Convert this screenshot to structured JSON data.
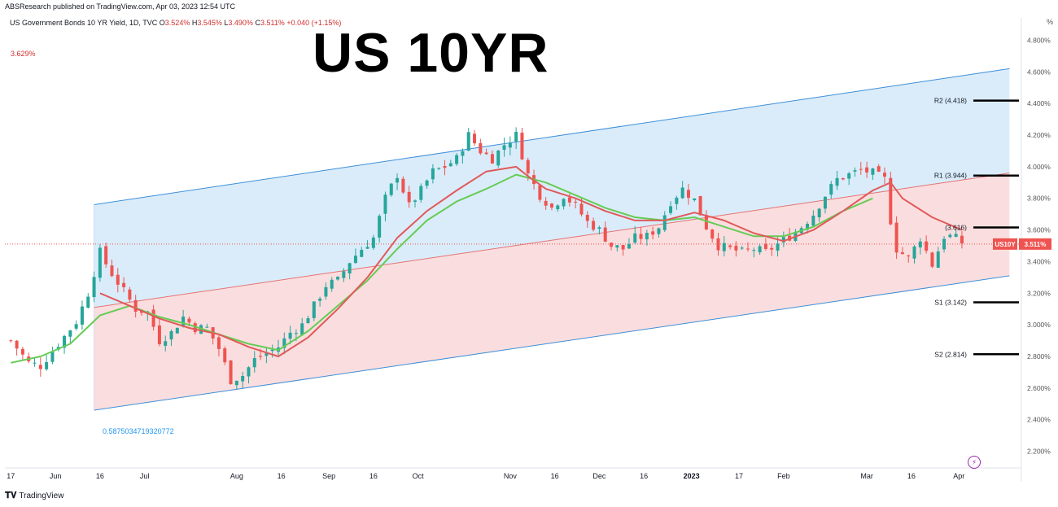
{
  "header": {
    "published": "ABSResearch published on TradingView.com, Apr 03, 2023 12:54 UTC",
    "symbol": "US Government Bonds 10 YR Yield, 1D, TVC",
    "o_label": "O",
    "o_value": "3.524%",
    "h_label": "H",
    "h_value": "3.545%",
    "l_label": "L",
    "l_value": "3.490%",
    "c_label": "C",
    "c_value": "3.511%",
    "change": "+0.040 (+1.15%)",
    "prev_value": "3.629%"
  },
  "title_overlay": "US 10YR",
  "fib_label": "0.5875034719320772",
  "footer": {
    "brand": "TradingView"
  },
  "chart_data": {
    "type": "candlestick",
    "y_unit": "%",
    "ylim": [
      2.1,
      4.9
    ],
    "y_ticks": [
      "2.200%",
      "2.400%",
      "2.600%",
      "2.800%",
      "3.000%",
      "3.200%",
      "3.400%",
      "3.600%",
      "3.800%",
      "4.000%",
      "4.200%",
      "4.400%",
      "4.600%",
      "4.800%"
    ],
    "y_tick_values": [
      2.2,
      2.4,
      2.6,
      2.8,
      3.0,
      3.2,
      3.4,
      3.6,
      3.8,
      4.0,
      4.2,
      4.4,
      4.6,
      4.8
    ],
    "x_ticks": [
      {
        "label": "17",
        "day": 0
      },
      {
        "label": "Jun",
        "day": 15
      },
      {
        "label": "16",
        "day": 30
      },
      {
        "label": "Jul",
        "day": 45
      },
      {
        "label": "Aug",
        "day": 76
      },
      {
        "label": "16",
        "day": 91
      },
      {
        "label": "Sep",
        "day": 107
      },
      {
        "label": "16",
        "day": 122
      },
      {
        "label": "Oct",
        "day": 137
      },
      {
        "label": "Nov",
        "day": 168
      },
      {
        "label": "16",
        "day": 183
      },
      {
        "label": "Dec",
        "day": 198
      },
      {
        "label": "16",
        "day": 213
      },
      {
        "label": "2023",
        "day": 229
      },
      {
        "label": "17",
        "day": 245
      },
      {
        "label": "Feb",
        "day": 260
      },
      {
        "label": "Mar",
        "day": 288
      },
      {
        "label": "16",
        "day": 303
      },
      {
        "label": "Apr",
        "day": 319
      }
    ],
    "x_range_days": [
      -2,
      340
    ],
    "close_series_anchors": [
      [
        0,
        2.9
      ],
      [
        6,
        2.76
      ],
      [
        10,
        2.74
      ],
      [
        16,
        2.88
      ],
      [
        22,
        3.02
      ],
      [
        26,
        3.2
      ],
      [
        30,
        3.46
      ],
      [
        33,
        3.35
      ],
      [
        37,
        3.24
      ],
      [
        42,
        3.1
      ],
      [
        46,
        3.08
      ],
      [
        50,
        2.9
      ],
      [
        54,
        2.95
      ],
      [
        58,
        3.05
      ],
      [
        62,
        2.98
      ],
      [
        66,
        2.98
      ],
      [
        70,
        2.85
      ],
      [
        74,
        2.65
      ],
      [
        78,
        2.68
      ],
      [
        82,
        2.78
      ],
      [
        86,
        2.82
      ],
      [
        90,
        2.86
      ],
      [
        94,
        2.95
      ],
      [
        98,
        3.0
      ],
      [
        102,
        3.12
      ],
      [
        106,
        3.25
      ],
      [
        110,
        3.28
      ],
      [
        114,
        3.4
      ],
      [
        118,
        3.48
      ],
      [
        122,
        3.55
      ],
      [
        126,
        3.8
      ],
      [
        130,
        3.95
      ],
      [
        134,
        3.75
      ],
      [
        138,
        3.85
      ],
      [
        142,
        3.97
      ],
      [
        146,
        4.0
      ],
      [
        150,
        4.05
      ],
      [
        154,
        4.2
      ],
      [
        158,
        4.1
      ],
      [
        162,
        4.05
      ],
      [
        166,
        4.14
      ],
      [
        170,
        4.2
      ],
      [
        174,
        3.95
      ],
      [
        178,
        3.82
      ],
      [
        182,
        3.74
      ],
      [
        186,
        3.82
      ],
      [
        190,
        3.75
      ],
      [
        194,
        3.65
      ],
      [
        198,
        3.6
      ],
      [
        202,
        3.5
      ],
      [
        206,
        3.48
      ],
      [
        210,
        3.55
      ],
      [
        214,
        3.56
      ],
      [
        218,
        3.62
      ],
      [
        222,
        3.78
      ],
      [
        226,
        3.86
      ],
      [
        230,
        3.79
      ],
      [
        234,
        3.62
      ],
      [
        238,
        3.5
      ],
      [
        242,
        3.48
      ],
      [
        246,
        3.46
      ],
      [
        250,
        3.48
      ],
      [
        254,
        3.46
      ],
      [
        258,
        3.51
      ],
      [
        262,
        3.56
      ],
      [
        266,
        3.62
      ],
      [
        270,
        3.7
      ],
      [
        274,
        3.82
      ],
      [
        278,
        3.92
      ],
      [
        282,
        3.95
      ],
      [
        286,
        3.98
      ],
      [
        290,
        3.96
      ],
      [
        294,
        3.92
      ],
      [
        296,
        3.66
      ],
      [
        298,
        3.48
      ],
      [
        302,
        3.42
      ],
      [
        306,
        3.55
      ],
      [
        310,
        3.38
      ],
      [
        314,
        3.56
      ],
      [
        317,
        3.56
      ],
      [
        320,
        3.52
      ]
    ],
    "series": [
      {
        "name": "US10Y",
        "values_ref": "close_series_anchors",
        "color": "#26a69a"
      }
    ],
    "ma_fast_anchors": [
      [
        30,
        3.2
      ],
      [
        40,
        3.12
      ],
      [
        50,
        3.04
      ],
      [
        60,
        2.98
      ],
      [
        70,
        2.94
      ],
      [
        80,
        2.86
      ],
      [
        90,
        2.8
      ],
      [
        100,
        2.92
      ],
      [
        110,
        3.1
      ],
      [
        120,
        3.3
      ],
      [
        130,
        3.55
      ],
      [
        140,
        3.72
      ],
      [
        150,
        3.85
      ],
      [
        160,
        3.97
      ],
      [
        170,
        4.0
      ],
      [
        174,
        3.94
      ],
      [
        180,
        3.86
      ],
      [
        190,
        3.8
      ],
      [
        200,
        3.72
      ],
      [
        210,
        3.66
      ],
      [
        220,
        3.66
      ],
      [
        230,
        3.71
      ],
      [
        240,
        3.66
      ],
      [
        250,
        3.58
      ],
      [
        260,
        3.53
      ],
      [
        270,
        3.6
      ],
      [
        280,
        3.72
      ],
      [
        290,
        3.85
      ],
      [
        296,
        3.9
      ],
      [
        300,
        3.8
      ],
      [
        310,
        3.68
      ],
      [
        320,
        3.6
      ]
    ],
    "ma_slow_anchors": [
      [
        0,
        2.76
      ],
      [
        10,
        2.8
      ],
      [
        20,
        2.88
      ],
      [
        30,
        3.06
      ],
      [
        40,
        3.12
      ],
      [
        50,
        3.05
      ],
      [
        60,
        3.0
      ],
      [
        70,
        2.94
      ],
      [
        80,
        2.88
      ],
      [
        90,
        2.84
      ],
      [
        100,
        2.96
      ],
      [
        110,
        3.12
      ],
      [
        120,
        3.28
      ],
      [
        130,
        3.48
      ],
      [
        140,
        3.66
      ],
      [
        150,
        3.78
      ],
      [
        160,
        3.86
      ],
      [
        170,
        3.95
      ],
      [
        180,
        3.9
      ],
      [
        190,
        3.82
      ],
      [
        200,
        3.74
      ],
      [
        210,
        3.68
      ],
      [
        220,
        3.66
      ],
      [
        230,
        3.68
      ],
      [
        240,
        3.62
      ],
      [
        250,
        3.56
      ],
      [
        260,
        3.56
      ],
      [
        270,
        3.62
      ],
      [
        280,
        3.72
      ],
      [
        290,
        3.8
      ]
    ],
    "channel": {
      "start_day": 28,
      "end_day": 336,
      "upper_start": 3.76,
      "upper_end": 4.62,
      "middle_start": 3.11,
      "middle_end": 3.96,
      "lower_start": 2.46,
      "lower_end": 3.31
    },
    "pivots": [
      {
        "label": "R2 (4.418)",
        "value": 4.418
      },
      {
        "label": "R1 (3.944)",
        "value": 3.944
      },
      {
        "label": "(3.616)",
        "value": 3.616
      },
      {
        "label": "S1 (3.142)",
        "value": 3.142
      },
      {
        "label": "S2 (2.814)",
        "value": 2.814
      }
    ],
    "last_price": {
      "symbol": "US10Y",
      "value_label": "3.511%",
      "value": 3.511
    },
    "colors": {
      "up": "#26a69a",
      "down": "#ef5350",
      "down_dark": "#d32f2f",
      "ma_fast": "#66cc55",
      "ma_slow": "#e05a5a",
      "channel_upper_fill": "#d6eafa",
      "channel_lower_fill": "#fadadc",
      "channel_line": "#3d8fd8",
      "channel_mid": "#e57373",
      "pivot": "#000000"
    }
  }
}
